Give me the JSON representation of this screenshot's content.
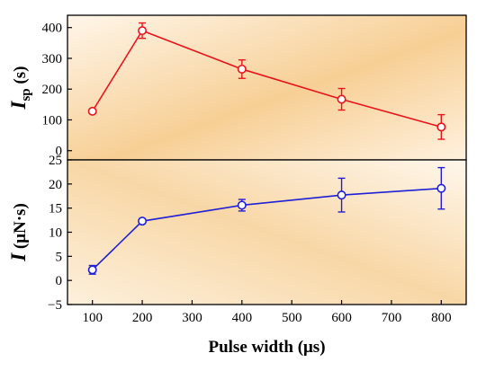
{
  "chart_data": [
    {
      "type": "line",
      "ylabel": {
        "main": "I",
        "sub": "sp",
        "rest": " (s)"
      },
      "ylim": [
        -30,
        440
      ],
      "yticks": [
        0,
        100,
        200,
        300,
        400
      ],
      "color": "#e8141c",
      "x": [
        100,
        200,
        400,
        600,
        800
      ],
      "values": [
        128,
        390,
        265,
        167,
        77
      ],
      "errors": [
        7,
        25,
        30,
        35,
        40
      ]
    },
    {
      "type": "line",
      "ylabel": {
        "main": "I",
        "sub": "",
        "rest": " (μN·s)"
      },
      "ylim": [
        -5,
        25
      ],
      "yticks": [
        -5,
        0,
        5,
        10,
        15,
        20,
        25
      ],
      "color": "#1f1fd6",
      "x": [
        100,
        200,
        400,
        600,
        800
      ],
      "values": [
        2.2,
        12.3,
        15.6,
        17.7,
        19.1
      ],
      "errors": [
        0.9,
        0.5,
        1.2,
        3.5,
        4.3
      ]
    }
  ],
  "shared_x": {
    "xlabel": "Pulse width (μs)",
    "xlim": [
      50,
      850
    ],
    "xticks": [
      100,
      200,
      300,
      400,
      500,
      600,
      700,
      800
    ]
  }
}
